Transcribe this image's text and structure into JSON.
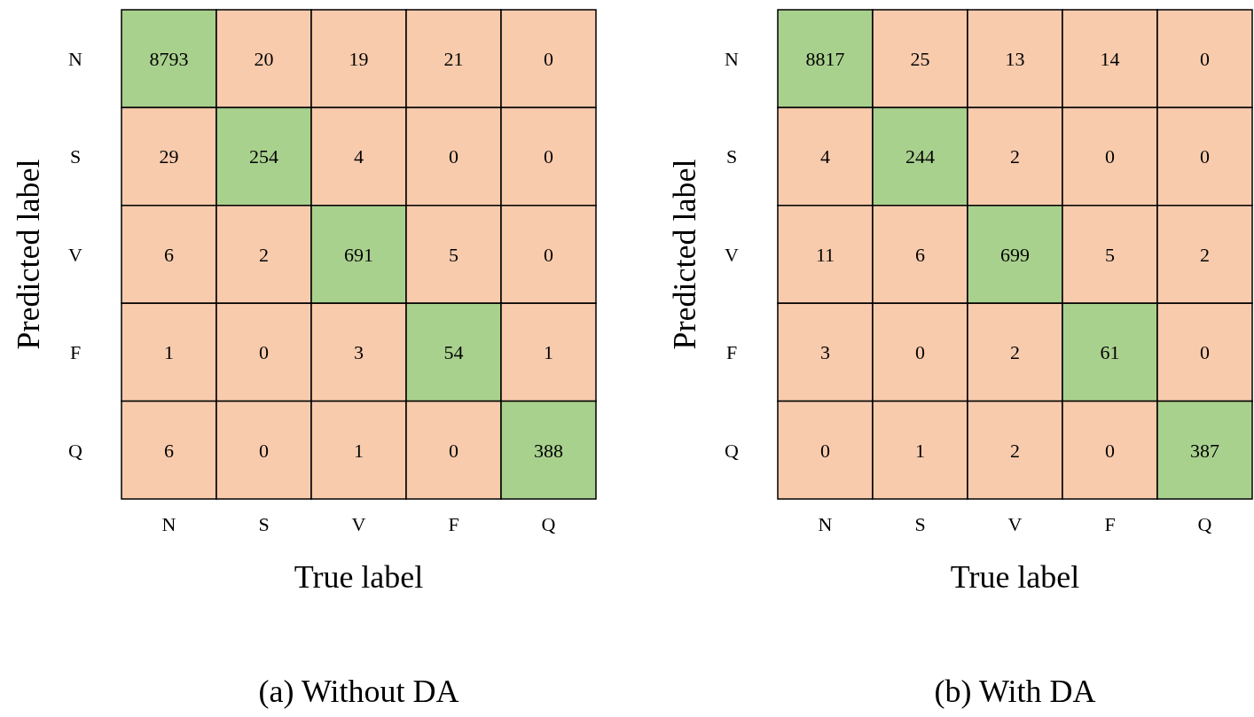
{
  "chart_data": [
    {
      "type": "heatmap",
      "title": "(a) Without DA",
      "xlabel": "True label",
      "ylabel": "Predicted label",
      "categories": [
        "N",
        "S",
        "V",
        "F",
        "Q"
      ],
      "y_categories": [
        "N",
        "S",
        "V",
        "F",
        "Q"
      ],
      "cells": [
        [
          8793,
          20,
          19,
          21,
          0
        ],
        [
          29,
          254,
          4,
          0,
          0
        ],
        [
          6,
          2,
          691,
          5,
          0
        ],
        [
          1,
          0,
          3,
          54,
          1
        ],
        [
          6,
          0,
          1,
          0,
          388
        ]
      ],
      "colors": [
        [
          "#a9d18e",
          "#f8cbad",
          "#f8cbad",
          "#f8cbad",
          "#f8cbad"
        ],
        [
          "#f8cbad",
          "#a9d18e",
          "#f8cbad",
          "#f8cbad",
          "#f8cbad"
        ],
        [
          "#f8cbad",
          "#f8cbad",
          "#a9d18e",
          "#f8cbad",
          "#f8cbad"
        ],
        [
          "#f8cbad",
          "#f8cbad",
          "#f8cbad",
          "#a9d18e",
          "#f8cbad"
        ],
        [
          "#f8cbad",
          "#f8cbad",
          "#f8cbad",
          "#f8cbad",
          "#a9d18e"
        ]
      ],
      "data_labels": true
    },
    {
      "type": "heatmap",
      "title": "(b) With DA",
      "xlabel": "True label",
      "ylabel": "Predicted label",
      "categories": [
        "N",
        "S",
        "V",
        "F",
        "Q"
      ],
      "y_categories": [
        "N",
        "S",
        "V",
        "F",
        "Q"
      ],
      "cells": [
        [
          8817,
          25,
          13,
          14,
          0
        ],
        [
          4,
          244,
          2,
          0,
          0
        ],
        [
          11,
          6,
          699,
          5,
          2
        ],
        [
          3,
          0,
          2,
          61,
          0
        ],
        [
          0,
          1,
          2,
          0,
          387
        ]
      ],
      "colors": [
        [
          "#a9d18e",
          "#f8cbad",
          "#f8cbad",
          "#f8cbad",
          "#f8cbad"
        ],
        [
          "#f8cbad",
          "#a9d18e",
          "#f8cbad",
          "#f8cbad",
          "#f8cbad"
        ],
        [
          "#f8cbad",
          "#f8cbad",
          "#a9d18e",
          "#f8cbad",
          "#f8cbad"
        ],
        [
          "#f8cbad",
          "#f8cbad",
          "#f8cbad",
          "#a9d18e",
          "#f8cbad"
        ],
        [
          "#f8cbad",
          "#f8cbad",
          "#f8cbad",
          "#f8cbad",
          "#a9d18e"
        ]
      ],
      "data_labels": true
    }
  ]
}
